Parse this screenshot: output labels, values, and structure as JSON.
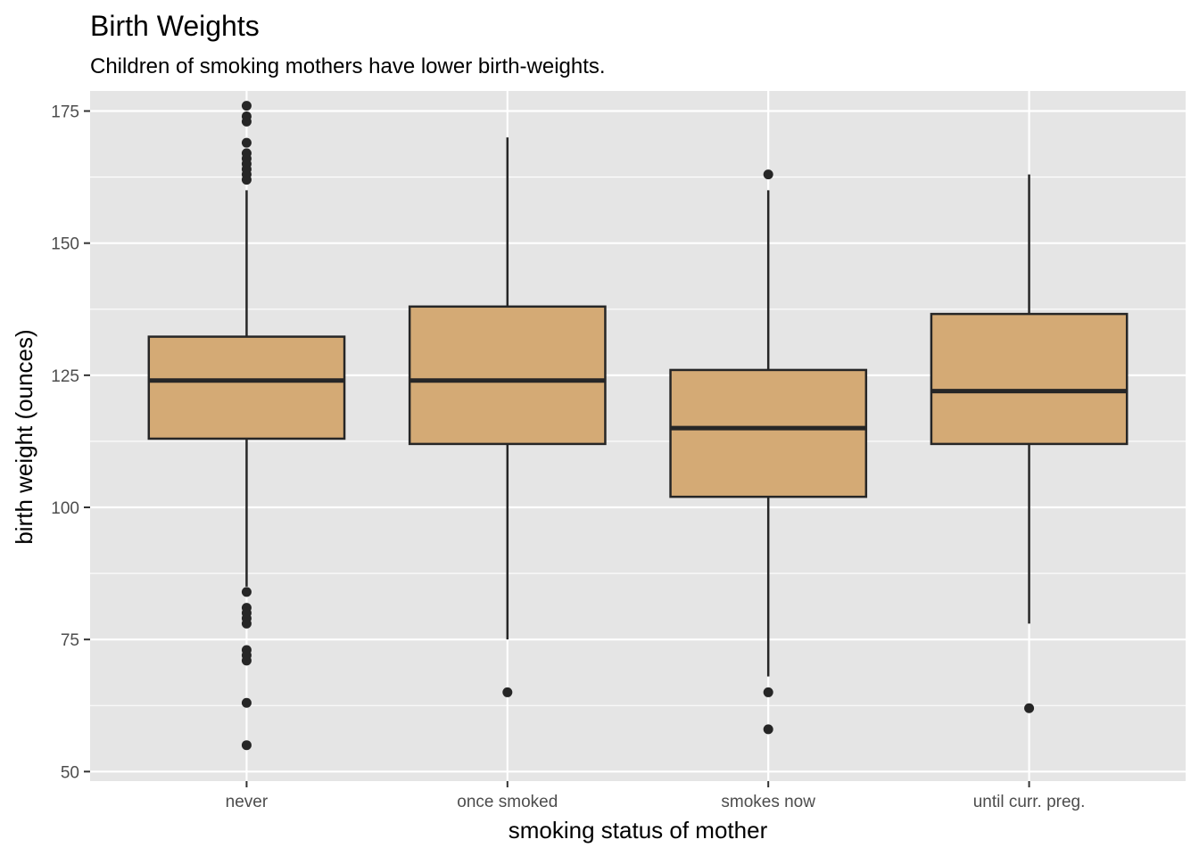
{
  "chart_data": {
    "type": "boxplot",
    "title": "Birth Weights",
    "subtitle": "Children of smoking mothers have lower birth-weights.",
    "xlabel": "smoking status of mother",
    "ylabel": "birth weight (ounces)",
    "ylim": [
      48.2,
      178.8
    ],
    "yticks": [
      50,
      75,
      100,
      125,
      150,
      175
    ],
    "ytick_labels": [
      "50",
      "75",
      "100",
      "125",
      "150",
      "175"
    ],
    "grid": true,
    "legend": "none",
    "categories": [
      "never",
      "once smoked",
      "smokes now",
      "until curr. preg."
    ],
    "boxes": [
      {
        "category": "never",
        "q1": 113,
        "median": 124,
        "q3": 132.3,
        "whisker_low": 85,
        "whisker_high": 160,
        "outliers": [
          55,
          63,
          71,
          72,
          73,
          78,
          79,
          80,
          81,
          84,
          162,
          163,
          164,
          165,
          166,
          167,
          169,
          173,
          174,
          176
        ]
      },
      {
        "category": "once smoked",
        "q1": 112,
        "median": 124,
        "q3": 138,
        "whisker_low": 75,
        "whisker_high": 170,
        "outliers": [
          65
        ]
      },
      {
        "category": "smokes now",
        "q1": 102,
        "median": 115,
        "q3": 126,
        "whisker_low": 68,
        "whisker_high": 160,
        "outliers": [
          58,
          65,
          163
        ]
      },
      {
        "category": "until curr. preg.",
        "q1": 112,
        "median": 122,
        "q3": 136.6,
        "whisker_low": 78,
        "whisker_high": 163,
        "outliers": [
          62
        ]
      }
    ],
    "colors": {
      "panel_background": "#e5e5e5",
      "grid": "#ffffff",
      "box_fill": "#d4aa75",
      "box_line": "#262626",
      "tick": "#333333",
      "tick_label": "#4d4d4d"
    }
  }
}
